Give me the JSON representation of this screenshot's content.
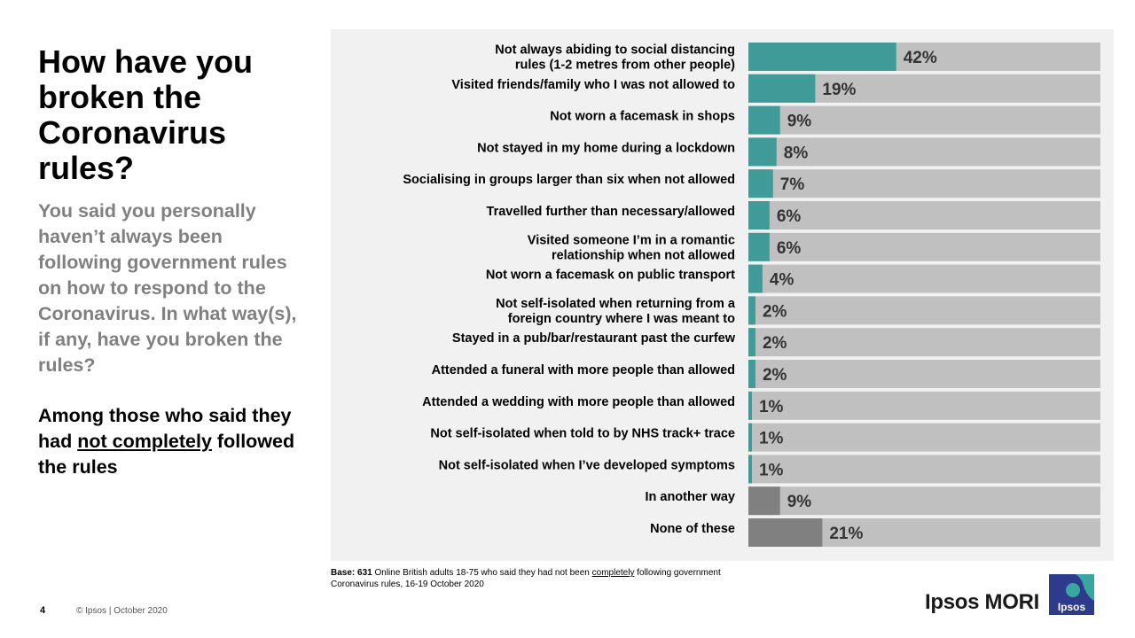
{
  "slide": {
    "title": "How have you broken the Coronavirus rules?",
    "subtitle": "You said you personally haven’t always been following government rules on how to respond to the Coronavirus. In what way(s), if any, have you broken the rules?",
    "base_prefix": "Among those who said they had",
    "base_emphasis": "not completely",
    "base_suffix": "followed the rules",
    "note_label": "Base: 631",
    "note_pre": " Online British adults 18-75 who said they had not been ",
    "note_emphasis": "completely",
    "note_post": " following government Coronavirus rules, 16-19 October 2020",
    "page_number": "4",
    "copyright": "© Ipsos | October 2020",
    "brand": "Ipsos MORI",
    "logo_text": "Ipsos"
  },
  "colors": {
    "teal": "#409a98",
    "dark_grey": "#808080",
    "track": "#c0c0c0",
    "panel": "#f1f1f1"
  },
  "chart_data": {
    "type": "bar",
    "orientation": "horizontal",
    "xlim": [
      0,
      100
    ],
    "categories": [
      [
        "Not always abiding to social distancing",
        "rules (1-2 metres from other people)"
      ],
      [
        "Visited friends/family who I was not allowed to"
      ],
      [
        "Not worn a facemask in shops"
      ],
      [
        "Not stayed in my home during a lockdown"
      ],
      [
        "Socialising in groups larger than six when not allowed"
      ],
      [
        "Travelled further than necessary/allowed"
      ],
      [
        "Visited someone I’m in a romantic",
        "relationship when not allowed"
      ],
      [
        "Not worn a facemask on public transport"
      ],
      [
        "Not self-isolated when returning from a",
        "foreign country where I was meant to"
      ],
      [
        "Stayed in a pub/bar/restaurant past the curfew"
      ],
      [
        "Attended a funeral with more people than allowed"
      ],
      [
        "Attended a wedding with more people than allowed"
      ],
      [
        "Not self-isolated when told to by NHS track+ trace"
      ],
      [
        "Not self-isolated when I’ve developed symptoms"
      ],
      [
        "In another way"
      ],
      [
        "None of these"
      ]
    ],
    "values": [
      42,
      19,
      9,
      8,
      7,
      6,
      6,
      4,
      2,
      2,
      2,
      1,
      1,
      1,
      9,
      21
    ],
    "data_labels": [
      "42%",
      "19%",
      "9%",
      "8%",
      "7%",
      "6%",
      "6%",
      "4%",
      "2%",
      "2%",
      "2%",
      "1%",
      "1%",
      "1%",
      "9%",
      "21%"
    ],
    "bar_colors": [
      "teal",
      "teal",
      "teal",
      "teal",
      "teal",
      "teal",
      "teal",
      "teal",
      "teal",
      "teal",
      "teal",
      "teal",
      "teal",
      "teal",
      "dark_grey",
      "dark_grey"
    ]
  }
}
